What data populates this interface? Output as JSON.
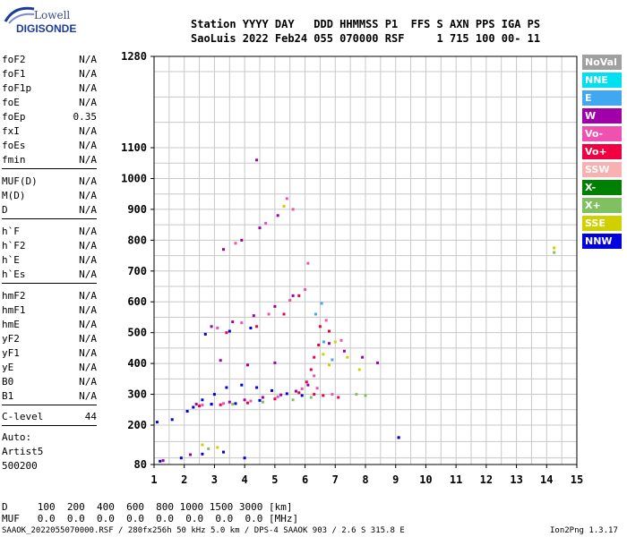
{
  "logo": {
    "line1": "Lowell",
    "line2": "DIGISONDE"
  },
  "header": {
    "line1": "Station YYYY DAY   DDD HHMMSS P1  FFS S AXN PPS IGA PS",
    "line2": "SaoLuis 2022 Feb24 055 070000 RSF     1 715 100 00- 11"
  },
  "params": [
    {
      "label": "foF2",
      "value": "N/A"
    },
    {
      "label": "foF1",
      "value": "N/A"
    },
    {
      "label": "foF1p",
      "value": "N/A"
    },
    {
      "label": "foE",
      "value": "N/A"
    },
    {
      "label": "foEp",
      "value": "0.35"
    },
    {
      "label": "fxI",
      "value": "N/A"
    },
    {
      "label": "foEs",
      "value": "N/A"
    },
    {
      "label": "fmin",
      "value": "N/A"
    },
    {
      "label": "MUF(D)",
      "value": "N/A"
    },
    {
      "label": "M(D)",
      "value": "N/A"
    },
    {
      "label": "D",
      "value": "N/A"
    },
    {
      "label": "h`F",
      "value": "N/A"
    },
    {
      "label": "h`F2",
      "value": "N/A"
    },
    {
      "label": "h`E",
      "value": "N/A"
    },
    {
      "label": "h`Es",
      "value": "N/A"
    },
    {
      "label": "hmF2",
      "value": "N/A"
    },
    {
      "label": "hmF1",
      "value": "N/A"
    },
    {
      "label": "hmE",
      "value": "N/A"
    },
    {
      "label": "yF2",
      "value": "N/A"
    },
    {
      "label": "yF1",
      "value": "N/A"
    },
    {
      "label": "yE",
      "value": "N/A"
    },
    {
      "label": "B0",
      "value": "N/A"
    },
    {
      "label": "B1",
      "value": "N/A"
    },
    {
      "label": "C-level",
      "value": "44"
    }
  ],
  "autoscale": {
    "line1": "Auto:",
    "line2": "Artist5",
    "line3": "500200"
  },
  "legend": [
    {
      "label": "NoVal",
      "bg": "#a0a0a0",
      "fg": "#ffffff"
    },
    {
      "label": "NNE",
      "bg": "#00e0f0",
      "fg": "#ffffff"
    },
    {
      "label": "E",
      "bg": "#40a8f0",
      "fg": "#ffffff"
    },
    {
      "label": "W",
      "bg": "#a000a8",
      "fg": "#ffffff"
    },
    {
      "label": "Vo-",
      "bg": "#f050b0",
      "fg": "#ffffff"
    },
    {
      "label": "Vo+",
      "bg": "#f00040",
      "fg": "#ffffff"
    },
    {
      "label": "SSW",
      "bg": "#f8b0b0",
      "fg": "#ffffff"
    },
    {
      "label": "X-",
      "bg": "#008000",
      "fg": "#ffffff"
    },
    {
      "label": "X+",
      "bg": "#80c060",
      "fg": "#ffffff"
    },
    {
      "label": "SSE",
      "bg": "#d0d000",
      "fg": "#ffffff"
    },
    {
      "label": "NNW",
      "bg": "#0000e0",
      "fg": "#ffffff"
    }
  ],
  "footer": {
    "d_row": "D     100  200  400  600  800 1000 1500 3000 [km]",
    "muf_row": "MUF   0.0  0.0  0.0  0.0  0.0  0.0  0.0  0.0 [MHz]",
    "file_info": "SAAOK_2022055070000.RSF / 280fx256h 50 kHz 5.0 km / DPS-4 SAAOK 903 / 2.6 S 315.8 E",
    "version": "Ion2Png 1.3.17"
  },
  "chart_data": {
    "type": "scatter",
    "title": "",
    "xlabel": "",
    "ylabel": "",
    "xlim": [
      1,
      15
    ],
    "ylim": [
      80,
      1280
    ],
    "xticks": [
      1,
      2,
      3,
      4,
      5,
      6,
      7,
      8,
      9,
      10,
      11,
      12,
      13,
      14,
      15
    ],
    "yticks": [
      80,
      200,
      300,
      400,
      500,
      600,
      700,
      800,
      900,
      1000,
      1100,
      1280
    ],
    "grid": true,
    "series": [
      {
        "name": "E",
        "color": "#40a8f0",
        "points": [
          [
            6.55,
            595
          ],
          [
            6.62,
            470
          ],
          [
            6.9,
            412
          ],
          [
            6.35,
            560
          ]
        ]
      },
      {
        "name": "W",
        "color": "#a000a8",
        "points": [
          [
            2.4,
            268
          ],
          [
            2.9,
            268
          ],
          [
            3.5,
            275
          ],
          [
            4.0,
            282
          ],
          [
            4.6,
            290
          ],
          [
            5.2,
            298
          ],
          [
            5.7,
            310
          ],
          [
            6.1,
            330
          ],
          [
            2.9,
            520
          ],
          [
            3.6,
            535
          ],
          [
            4.3,
            555
          ],
          [
            5.0,
            585
          ],
          [
            5.6,
            620
          ],
          [
            3.3,
            770
          ],
          [
            3.9,
            800
          ],
          [
            4.5,
            840
          ],
          [
            5.1,
            880
          ],
          [
            3.2,
            410
          ],
          [
            4.1,
            395
          ],
          [
            5.0,
            402
          ],
          [
            6.8,
            465
          ],
          [
            7.3,
            440
          ],
          [
            7.9,
            420
          ],
          [
            8.4,
            402
          ],
          [
            1.3,
            92
          ],
          [
            2.2,
            110
          ],
          [
            9.1,
            162
          ],
          [
            4.4,
            1060
          ]
        ]
      },
      {
        "name": "Vo-",
        "color": "#f050b0",
        "points": [
          [
            2.6,
            265
          ],
          [
            3.3,
            270
          ],
          [
            4.2,
            278
          ],
          [
            5.1,
            292
          ],
          [
            5.9,
            318
          ],
          [
            6.3,
            360
          ],
          [
            3.1,
            515
          ],
          [
            3.9,
            532
          ],
          [
            4.8,
            560
          ],
          [
            5.5,
            605
          ],
          [
            6.0,
            640
          ],
          [
            6.1,
            725
          ],
          [
            3.7,
            790
          ],
          [
            4.7,
            855
          ],
          [
            5.6,
            900
          ],
          [
            6.7,
            540
          ],
          [
            7.2,
            475
          ],
          [
            6.4,
            320
          ],
          [
            6.9,
            300
          ],
          [
            5.4,
            935
          ]
        ]
      },
      {
        "name": "Vo+",
        "color": "#f00040",
        "points": [
          [
            2.5,
            262
          ],
          [
            3.2,
            266
          ],
          [
            4.1,
            272
          ],
          [
            5.0,
            285
          ],
          [
            5.8,
            305
          ],
          [
            6.05,
            340
          ],
          [
            6.2,
            380
          ],
          [
            6.3,
            420
          ],
          [
            6.45,
            460
          ],
          [
            3.4,
            500
          ],
          [
            4.4,
            520
          ],
          [
            5.3,
            560
          ],
          [
            5.8,
            620
          ],
          [
            6.3,
            300
          ],
          [
            6.6,
            296
          ],
          [
            7.1,
            290
          ],
          [
            6.5,
            520
          ],
          [
            6.8,
            505
          ]
        ]
      },
      {
        "name": "X+",
        "color": "#80c060",
        "points": [
          [
            3.6,
            268
          ],
          [
            4.6,
            275
          ],
          [
            5.6,
            282
          ],
          [
            6.2,
            290
          ],
          [
            7.7,
            300
          ],
          [
            8.0,
            296
          ],
          [
            14.25,
            760
          ],
          [
            2.8,
            128
          ]
        ]
      },
      {
        "name": "SSE",
        "color": "#d0d000",
        "points": [
          [
            6.6,
            430
          ],
          [
            7.0,
            470
          ],
          [
            7.4,
            420
          ],
          [
            7.8,
            380
          ],
          [
            6.8,
            395
          ],
          [
            2.6,
            140
          ],
          [
            3.1,
            132
          ],
          [
            14.25,
            775
          ],
          [
            5.3,
            910
          ]
        ]
      },
      {
        "name": "NNW",
        "color": "#0000e0",
        "points": [
          [
            1.1,
            210
          ],
          [
            1.6,
            218
          ],
          [
            2.1,
            245
          ],
          [
            2.3,
            258
          ],
          [
            2.6,
            282
          ],
          [
            3.0,
            300
          ],
          [
            3.4,
            322
          ],
          [
            3.9,
            330
          ],
          [
            4.4,
            322
          ],
          [
            4.9,
            312
          ],
          [
            5.4,
            302
          ],
          [
            5.9,
            296
          ],
          [
            2.9,
            268
          ],
          [
            3.7,
            270
          ],
          [
            4.5,
            280
          ],
          [
            2.7,
            495
          ],
          [
            3.5,
            505
          ],
          [
            4.2,
            515
          ],
          [
            1.2,
            90
          ],
          [
            1.9,
            100
          ],
          [
            2.6,
            112
          ],
          [
            3.3,
            118
          ],
          [
            4.0,
            100
          ],
          [
            9.1,
            162
          ]
        ]
      }
    ]
  }
}
